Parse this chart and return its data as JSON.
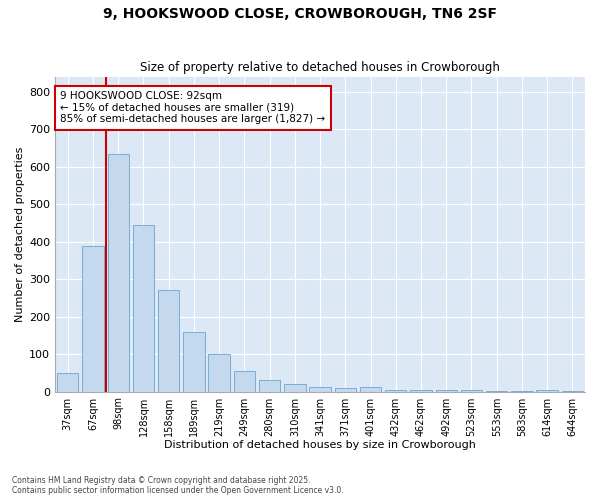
{
  "title_line1": "9, HOOKSWOOD CLOSE, CROWBOROUGH, TN6 2SF",
  "title_line2": "Size of property relative to detached houses in Crowborough",
  "xlabel": "Distribution of detached houses by size in Crowborough",
  "ylabel": "Number of detached properties",
  "categories": [
    "37sqm",
    "67sqm",
    "98sqm",
    "128sqm",
    "158sqm",
    "189sqm",
    "219sqm",
    "249sqm",
    "280sqm",
    "310sqm",
    "341sqm",
    "371sqm",
    "401sqm",
    "432sqm",
    "462sqm",
    "492sqm",
    "523sqm",
    "553sqm",
    "583sqm",
    "614sqm",
    "644sqm"
  ],
  "values": [
    50,
    390,
    635,
    445,
    270,
    160,
    100,
    55,
    30,
    20,
    12,
    10,
    12,
    5,
    3,
    3,
    3,
    2,
    1,
    5,
    1
  ],
  "bar_color": "#c5d9ee",
  "bar_edge_color": "#7aadd4",
  "property_line_color": "#cc0000",
  "property_line_index": 2,
  "annotation_text": "9 HOOKSWOOD CLOSE: 92sqm\n← 15% of detached houses are smaller (319)\n85% of semi-detached houses are larger (1,827) →",
  "annotation_box_facecolor": "#ffffff",
  "annotation_box_edgecolor": "#cc0000",
  "ylim": [
    0,
    840
  ],
  "yticks": [
    0,
    100,
    200,
    300,
    400,
    500,
    600,
    700,
    800
  ],
  "fig_background": "#ffffff",
  "plot_background": "#dce8f5",
  "grid_color": "#ffffff",
  "footnote1": "Contains HM Land Registry data © Crown copyright and database right 2025.",
  "footnote2": "Contains public sector information licensed under the Open Government Licence v3.0."
}
